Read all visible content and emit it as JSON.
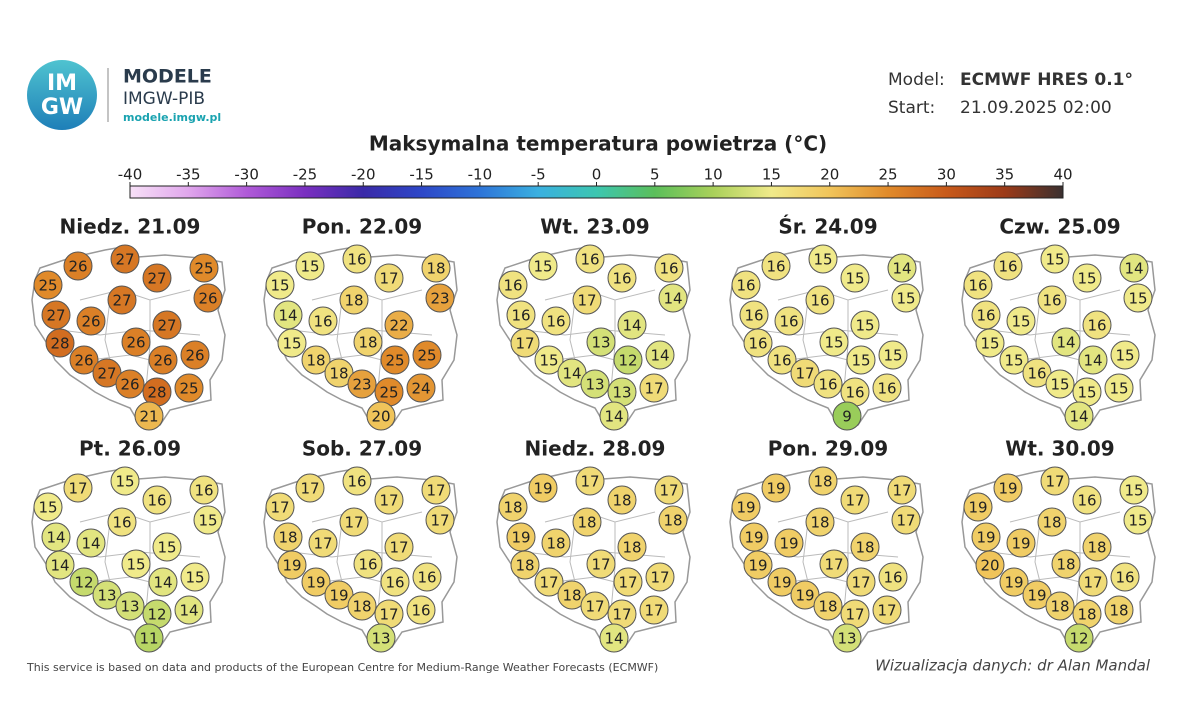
{
  "header": {
    "logo_top": "IM",
    "logo_bottom": "GW",
    "brand": "MODELE",
    "org": "IMGW-PIB",
    "url": "modele.imgw.pl",
    "model_label": "Model:",
    "model": "ECMWF HRES 0.1°",
    "start_label": "Start:",
    "start": "21.09.2025 02:00"
  },
  "title": "Maksymalna temperatura powietrza (°C)",
  "colorbar": {
    "ticks": [
      -40,
      -35,
      -30,
      -25,
      -20,
      -15,
      -10,
      -5,
      0,
      5,
      10,
      15,
      20,
      25,
      30,
      35,
      40
    ],
    "colors": [
      "#f7e0f7",
      "#e0a6ec",
      "#b05ad8",
      "#7a2fc0",
      "#3a2aa8",
      "#2d47c8",
      "#2e74d8",
      "#3ab0e0",
      "#3cc6b0",
      "#5bbf5a",
      "#a9d05a",
      "#f0ea8a",
      "#f0c45a",
      "#e08a2a",
      "#c85a1a",
      "#9c3a18",
      "#3a3030"
    ]
  },
  "maps": [
    {
      "label": "Niedz. 21.09",
      "values": [
        26,
        27,
        25,
        25,
        27,
        26,
        27,
        27,
        26,
        27,
        28,
        26,
        26,
        26,
        26,
        27,
        26,
        28,
        25,
        21
      ]
    },
    {
      "label": "Pon. 22.09",
      "values": [
        15,
        16,
        18,
        15,
        17,
        23,
        18,
        14,
        16,
        22,
        15,
        18,
        18,
        25,
        25,
        18,
        23,
        25,
        24,
        20
      ]
    },
    {
      "label": "Wt. 23.09",
      "values": [
        15,
        16,
        16,
        16,
        16,
        14,
        17,
        16,
        16,
        14,
        17,
        13,
        15,
        12,
        14,
        14,
        13,
        13,
        17,
        14
      ]
    },
    {
      "label": "Śr. 24.09",
      "values": [
        16,
        15,
        14,
        16,
        15,
        15,
        16,
        16,
        16,
        15,
        16,
        15,
        16,
        15,
        15,
        17,
        16,
        16,
        16,
        9
      ]
    },
    {
      "label": "Czw. 25.09",
      "values": [
        16,
        15,
        14,
        16,
        15,
        15,
        16,
        16,
        15,
        16,
        15,
        14,
        15,
        14,
        15,
        16,
        15,
        15,
        15,
        14
      ]
    },
    {
      "label": "Pt. 26.09",
      "values": [
        17,
        15,
        16,
        15,
        16,
        15,
        16,
        14,
        14,
        15,
        14,
        15,
        12,
        14,
        15,
        13,
        13,
        12,
        14,
        11
      ]
    },
    {
      "label": "Sob. 27.09",
      "values": [
        17,
        16,
        17,
        17,
        17,
        17,
        17,
        18,
        17,
        17,
        19,
        16,
        19,
        16,
        16,
        19,
        18,
        17,
        16,
        13
      ]
    },
    {
      "label": "Niedz. 28.09",
      "values": [
        19,
        17,
        17,
        18,
        18,
        18,
        18,
        19,
        18,
        18,
        18,
        17,
        17,
        17,
        17,
        18,
        17,
        17,
        17,
        14
      ]
    },
    {
      "label": "Pon. 29.09",
      "values": [
        19,
        18,
        17,
        19,
        17,
        17,
        18,
        19,
        19,
        18,
        19,
        17,
        19,
        17,
        16,
        19,
        18,
        17,
        17,
        13
      ]
    },
    {
      "label": "Wt. 30.09",
      "values": [
        19,
        17,
        15,
        19,
        16,
        15,
        18,
        19,
        19,
        18,
        20,
        18,
        19,
        17,
        16,
        19,
        18,
        18,
        18,
        12
      ]
    }
  ],
  "footer": {
    "source": "This service is based on data and products of the European Centre for Medium-Range Weather Forecasts (ECMWF)",
    "credit": "Wizualizacja danych: dr Alan Mandal"
  }
}
